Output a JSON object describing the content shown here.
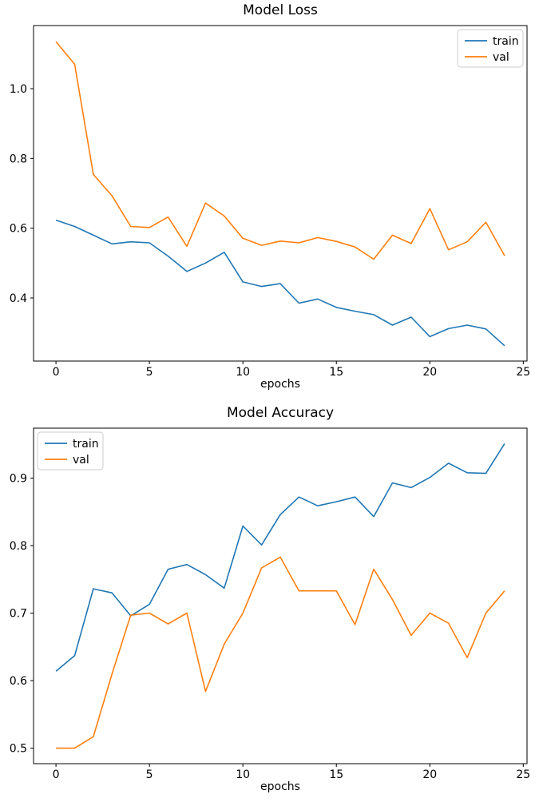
{
  "figure": {
    "background": "#ffffff",
    "spine_color": "#000000",
    "text_color": "#000000",
    "legend_border_color": "#cccccc"
  },
  "chart_data": [
    {
      "type": "line",
      "title": "Model Loss",
      "xlabel": "epochs",
      "legend_position": "upper-right",
      "grid": false,
      "x": [
        0,
        1,
        2,
        3,
        4,
        5,
        6,
        7,
        8,
        9,
        10,
        11,
        12,
        13,
        14,
        15,
        16,
        17,
        18,
        19,
        20,
        21,
        22,
        23,
        24
      ],
      "xlim": [
        -1.2,
        25.2
      ],
      "ylim": [
        0.219,
        1.181
      ],
      "xticks": [
        0,
        5,
        10,
        15,
        20,
        25
      ],
      "xtick_labels": [
        "0",
        "5",
        "10",
        "15",
        "20",
        "25"
      ],
      "yticks": [
        0.4,
        0.6,
        0.8,
        1.0
      ],
      "ytick_labels": [
        "0.4",
        "0.6",
        "0.8",
        "1.0"
      ],
      "series": [
        {
          "name": "train",
          "color": "#1f77b4",
          "values": [
            0.623,
            0.605,
            0.58,
            0.555,
            0.561,
            0.558,
            0.52,
            0.476,
            0.5,
            0.531,
            0.446,
            0.433,
            0.441,
            0.385,
            0.397,
            0.373,
            0.362,
            0.352,
            0.322,
            0.345,
            0.289,
            0.312,
            0.322,
            0.311,
            0.263
          ]
        },
        {
          "name": "val",
          "color": "#ff7f0e",
          "values": [
            1.135,
            1.07,
            0.754,
            0.693,
            0.605,
            0.602,
            0.632,
            0.548,
            0.672,
            0.635,
            0.571,
            0.551,
            0.563,
            0.558,
            0.573,
            0.562,
            0.546,
            0.511,
            0.58,
            0.556,
            0.656,
            0.538,
            0.561,
            0.617,
            0.521
          ]
        }
      ]
    },
    {
      "type": "line",
      "title": "Model Accuracy",
      "xlabel": "epochs",
      "legend_position": "upper-left",
      "grid": false,
      "x": [
        0,
        1,
        2,
        3,
        4,
        5,
        6,
        7,
        8,
        9,
        10,
        11,
        12,
        13,
        14,
        15,
        16,
        17,
        18,
        19,
        20,
        21,
        22,
        23,
        24
      ],
      "xlim": [
        -1.2,
        25.2
      ],
      "ylim": [
        0.477,
        0.974
      ],
      "xticks": [
        0,
        5,
        10,
        15,
        20,
        25
      ],
      "xtick_labels": [
        "0",
        "5",
        "10",
        "15",
        "20",
        "25"
      ],
      "yticks": [
        0.5,
        0.6,
        0.7,
        0.8,
        0.9
      ],
      "ytick_labels": [
        "0.5",
        "0.6",
        "0.7",
        "0.8",
        "0.9"
      ],
      "series": [
        {
          "name": "train",
          "color": "#1f77b4",
          "values": [
            0.614,
            0.637,
            0.736,
            0.73,
            0.696,
            0.713,
            0.765,
            0.772,
            0.757,
            0.737,
            0.829,
            0.801,
            0.846,
            0.872,
            0.859,
            0.865,
            0.872,
            0.843,
            0.893,
            0.886,
            0.901,
            0.922,
            0.908,
            0.907,
            0.951
          ]
        },
        {
          "name": "val",
          "color": "#ff7f0e",
          "values": [
            0.5,
            0.5,
            0.517,
            0.61,
            0.697,
            0.7,
            0.684,
            0.7,
            0.584,
            0.654,
            0.7,
            0.767,
            0.783,
            0.733,
            0.733,
            0.733,
            0.683,
            0.765,
            0.72,
            0.667,
            0.7,
            0.685,
            0.634,
            0.7,
            0.733
          ]
        }
      ]
    }
  ]
}
